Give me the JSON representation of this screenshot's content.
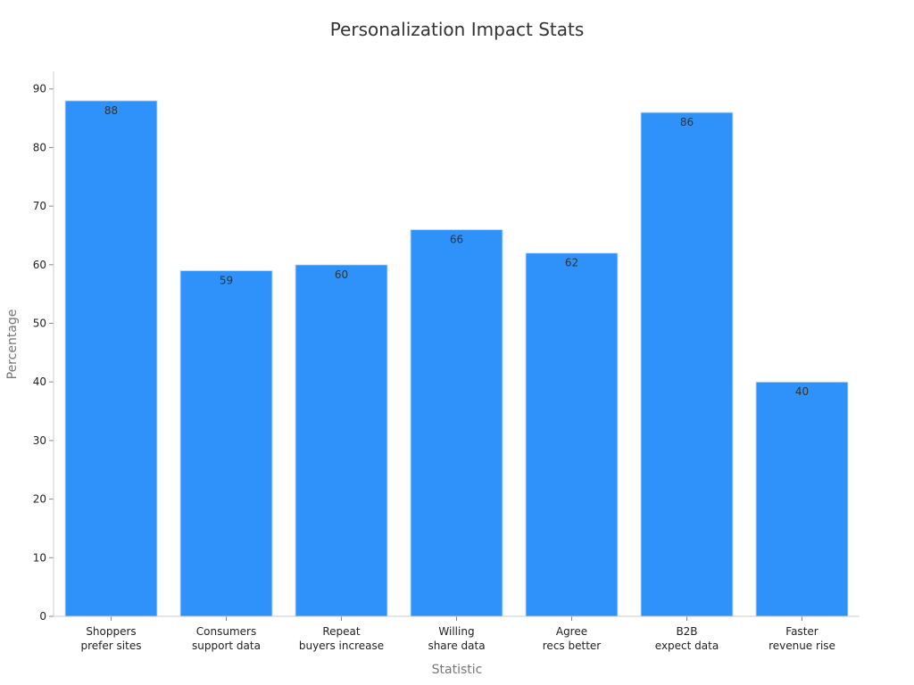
{
  "chart_data": {
    "type": "bar",
    "title": "Personalization Impact Stats",
    "xlabel": "Statistic",
    "ylabel": "Percentage",
    "categories": [
      [
        "Shoppers",
        "prefer sites"
      ],
      [
        "Consumers",
        "support data"
      ],
      [
        "Repeat",
        "buyers increase"
      ],
      [
        "Willing",
        "share data"
      ],
      [
        "Agree",
        "recs better"
      ],
      [
        "B2B",
        "expect data"
      ],
      [
        "Faster",
        "revenue rise"
      ]
    ],
    "values": [
      88,
      59,
      60,
      66,
      62,
      86,
      40
    ],
    "ylim": [
      0,
      93
    ],
    "yticks": [
      0,
      10,
      20,
      30,
      40,
      50,
      60,
      70,
      80,
      90
    ],
    "bar_color": "#2f92fa",
    "bar_edge_color": "#d6e6f5",
    "grid": false,
    "legend": "none",
    "data_labels": true
  }
}
